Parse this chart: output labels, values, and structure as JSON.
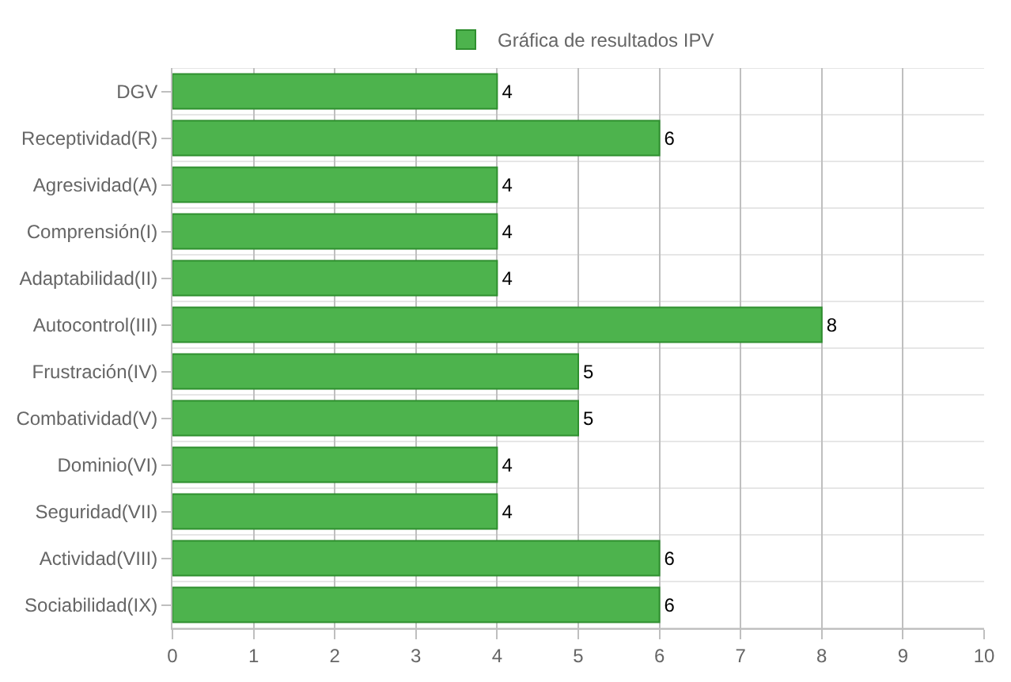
{
  "chart_data": {
    "type": "bar",
    "orientation": "horizontal",
    "categories": [
      "DGV",
      "Receptividad(R)",
      "Agresividad(A)",
      "Comprensión(I)",
      "Adaptabilidad(II)",
      "Autocontrol(III)",
      "Frustración(IV)",
      "Combatividad(V)",
      "Dominio(VI)",
      "Seguridad(VII)",
      "Actividad(VIII)",
      "Sociabilidad(IX)"
    ],
    "series": [
      {
        "name": "Gráfica de resultados IPV",
        "color": "#4db34d",
        "values": [
          4,
          6,
          4,
          4,
          4,
          8,
          5,
          5,
          4,
          4,
          6,
          6
        ]
      }
    ],
    "xlim": [
      0,
      10
    ],
    "xticks": [
      0,
      1,
      2,
      3,
      4,
      5,
      6,
      7,
      8,
      9,
      10
    ],
    "grid": true,
    "legend": "top",
    "data_labels": true
  }
}
